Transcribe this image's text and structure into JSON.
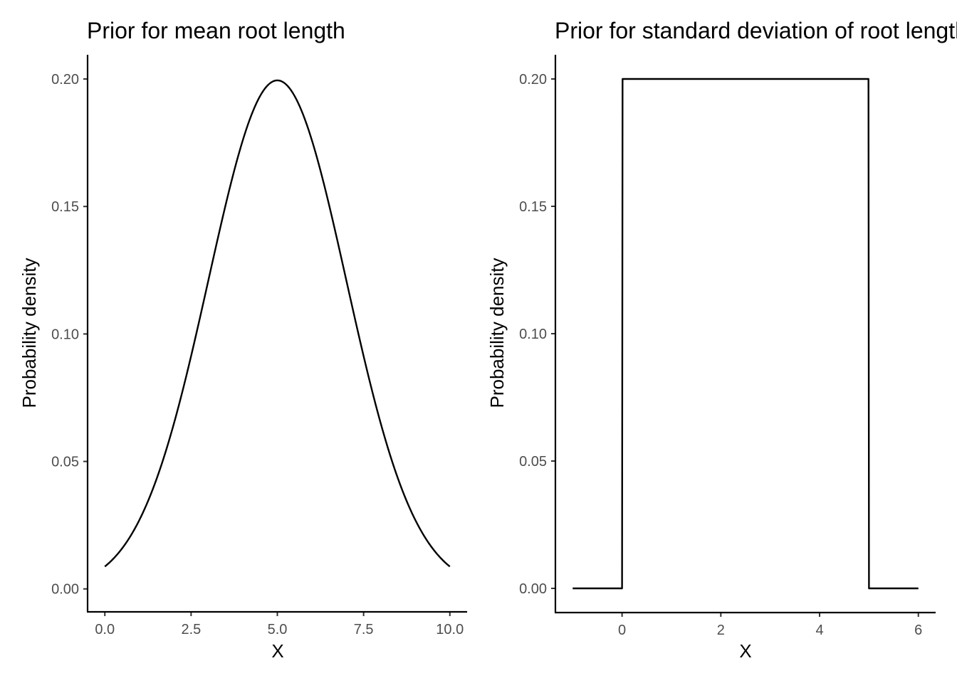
{
  "chart_data": [
    {
      "type": "line",
      "title": "Prior for mean root length",
      "xlabel": "X",
      "ylabel": "Probability density",
      "xlim": [
        -0.5,
        10.5
      ],
      "ylim": [
        -0.009,
        0.2095
      ],
      "xticks": [
        0.0,
        2.5,
        5.0,
        7.5,
        10.0
      ],
      "xtick_labels": [
        "0.0",
        "2.5",
        "5.0",
        "7.5",
        "10.0"
      ],
      "yticks": [
        0.0,
        0.05,
        0.1,
        0.15,
        0.2
      ],
      "ytick_labels": [
        "0.00",
        "0.05",
        "0.10",
        "0.15",
        "0.20"
      ],
      "grid": false,
      "series": [
        {
          "distribution": "normal",
          "mean": 5,
          "sd": 2,
          "x_range": [
            0,
            10
          ]
        }
      ]
    },
    {
      "type": "line",
      "title": "Prior for standard deviation of root length",
      "xlabel": "X",
      "ylabel": "Probability density",
      "xlim": [
        -1.35,
        6.35
      ],
      "ylim": [
        -0.0095,
        0.2095
      ],
      "xticks": [
        0,
        2,
        4,
        6
      ],
      "xtick_labels": [
        "0",
        "2",
        "4",
        "6"
      ],
      "yticks": [
        0.0,
        0.05,
        0.1,
        0.15,
        0.2
      ],
      "ytick_labels": [
        "0.00",
        "0.05",
        "0.10",
        "0.15",
        "0.20"
      ],
      "grid": false,
      "series": [
        {
          "distribution": "uniform",
          "min": 0,
          "max": 5,
          "x": [
            -1,
            0,
            0.01,
            4.99,
            5,
            6
          ],
          "y": [
            0,
            0,
            0.2,
            0.2,
            0,
            0
          ]
        }
      ]
    }
  ]
}
